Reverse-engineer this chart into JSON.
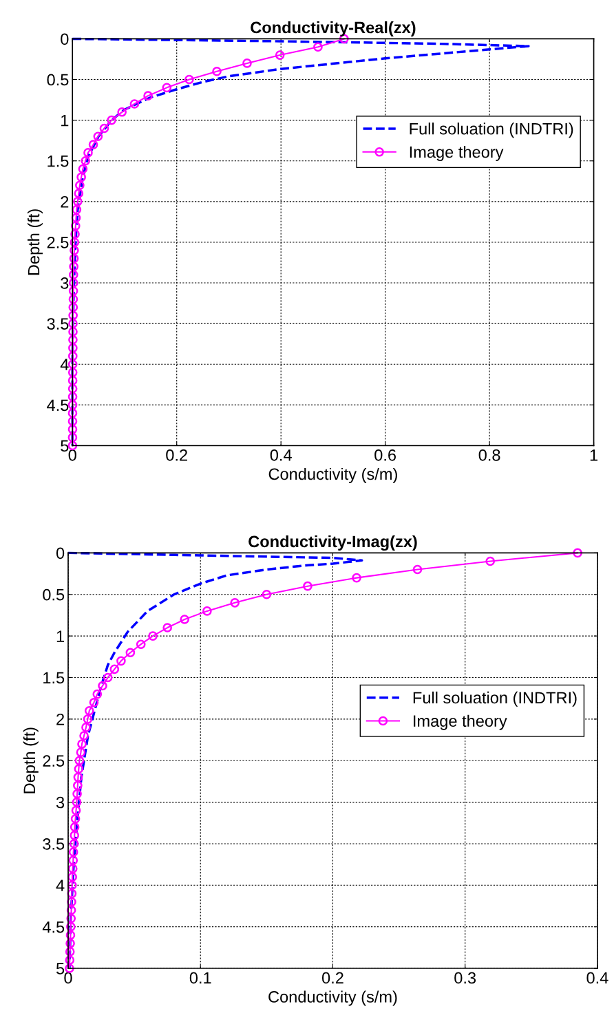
{
  "chart_data": [
    {
      "type": "line",
      "title": "Conductivity-Real(zx)",
      "xlabel": "Conductivity (s/m)",
      "ylabel": "Depth (ft)",
      "xlim": [
        0,
        1
      ],
      "xticks": [
        0,
        0.2,
        0.4,
        0.6,
        0.8,
        1
      ],
      "ylim": [
        5,
        0
      ],
      "yticks": [
        0,
        0.5,
        1,
        1.5,
        2,
        2.5,
        3,
        3.5,
        4,
        4.5,
        5
      ],
      "grid": true,
      "legend": "top right",
      "series": [
        {
          "name": "Full soluation (INDTRI)",
          "color": "#0000ff",
          "line_style": "dashed",
          "marker": "none",
          "x": [
            0,
            0.4,
            0.7,
            0.875,
            0.8,
            0.6,
            0.4,
            0.3,
            0.25,
            0.2,
            0.15,
            0.1,
            0.075,
            0.05,
            0.03,
            0.02,
            0.01,
            0.005,
            0.002,
            0,
            0
          ],
          "values": [
            0,
            0.03,
            0.06,
            0.09,
            0.13,
            0.24,
            0.37,
            0.46,
            0.53,
            0.62,
            0.72,
            0.87,
            1.0,
            1.2,
            1.45,
            1.7,
            2.1,
            2.6,
            3.2,
            4,
            5
          ]
        },
        {
          "name": "Image theory",
          "color": "#ff00ff",
          "line_style": "solid",
          "marker": "circle",
          "x": [
            0.521,
            0.471,
            0.398,
            0.335,
            0.277,
            0.224,
            0.181,
            0.145,
            0.119,
            0.095,
            0.075,
            0.061,
            0.049,
            0.04,
            0.03,
            0.025,
            0.02,
            0.017,
            0.014,
            0.012,
            0.01,
            0.008,
            0.007,
            0.006,
            0.005,
            0.004,
            0.0035,
            0.003,
            0.0025,
            0.002,
            0.002,
            0.0018,
            0.0016,
            0.0014,
            0.0012,
            0.001,
            0.001,
            0.0009,
            0.0008,
            0.0007,
            0.0006,
            0.0006,
            0.0005,
            0.0005,
            0.0004,
            0.0004,
            0.0003,
            0.0003,
            0.0003,
            0.0002,
            0.0002
          ],
          "values": [
            0,
            0.1,
            0.2,
            0.3,
            0.4,
            0.5,
            0.6,
            0.7,
            0.8,
            0.9,
            1.0,
            1.1,
            1.2,
            1.3,
            1.4,
            1.5,
            1.6,
            1.7,
            1.8,
            1.9,
            2.0,
            2.1,
            2.2,
            2.3,
            2.4,
            2.5,
            2.6,
            2.7,
            2.8,
            2.9,
            3.0,
            3.1,
            3.2,
            3.3,
            3.4,
            3.5,
            3.6,
            3.7,
            3.8,
            3.9,
            4.0,
            4.1,
            4.2,
            4.3,
            4.4,
            4.5,
            4.6,
            4.7,
            4.8,
            4.9,
            5.0
          ]
        }
      ]
    },
    {
      "type": "line",
      "title": "Conductivity-Imag(zx)",
      "xlabel": "Conductivity (s/m)",
      "ylabel": "Depth (ft)",
      "xlim": [
        0,
        0.4
      ],
      "xticks": [
        0,
        0.1,
        0.2,
        0.3,
        0.4
      ],
      "ylim": [
        5,
        0
      ],
      "yticks": [
        0,
        0.5,
        1,
        1.5,
        2,
        2.5,
        3,
        3.5,
        4,
        4.5,
        5
      ],
      "grid": true,
      "legend": "right",
      "series": [
        {
          "name": "Full soluation (INDTRI)",
          "color": "#0000ff",
          "line_style": "dashed",
          "marker": "none",
          "x": [
            0,
            0.1,
            0.2,
            0.222,
            0.2,
            0.18,
            0.15,
            0.12,
            0.1,
            0.08,
            0.06,
            0.045,
            0.035,
            0.03,
            0.025,
            0.02,
            0.015,
            0.01,
            0.007,
            0.004,
            0.002,
            0.001
          ],
          "values": [
            0,
            0.03,
            0.06,
            0.09,
            0.13,
            0.15,
            0.2,
            0.27,
            0.37,
            0.5,
            0.7,
            0.95,
            1.2,
            1.35,
            1.6,
            1.9,
            2.2,
            2.7,
            3.2,
            3.8,
            4.4,
            5
          ]
        },
        {
          "name": "Image theory",
          "color": "#ff00ff",
          "line_style": "solid",
          "marker": "circle",
          "x": [
            0.385,
            0.319,
            0.264,
            0.218,
            0.181,
            0.15,
            0.126,
            0.105,
            0.088,
            0.075,
            0.064,
            0.055,
            0.047,
            0.04,
            0.035,
            0.03,
            0.026,
            0.022,
            0.0195,
            0.016,
            0.0148,
            0.0135,
            0.012,
            0.0104,
            0.0096,
            0.0085,
            0.008,
            0.0075,
            0.0072,
            0.0068,
            0.0065,
            0.006,
            0.0055,
            0.005,
            0.0048,
            0.0045,
            0.004,
            0.0038,
            0.0035,
            0.0032,
            0.003,
            0.0028,
            0.0026,
            0.0024,
            0.0022,
            0.002,
            0.0018,
            0.0016,
            0.0014,
            0.0012,
            0.001
          ],
          "values": [
            0,
            0.1,
            0.2,
            0.3,
            0.4,
            0.5,
            0.6,
            0.7,
            0.8,
            0.9,
            1.0,
            1.1,
            1.2,
            1.3,
            1.4,
            1.5,
            1.6,
            1.7,
            1.8,
            1.9,
            2.0,
            2.1,
            2.2,
            2.3,
            2.4,
            2.5,
            2.6,
            2.7,
            2.8,
            2.9,
            3.0,
            3.1,
            3.2,
            3.3,
            3.4,
            3.5,
            3.6,
            3.7,
            3.8,
            3.9,
            4.0,
            4.1,
            4.2,
            4.3,
            4.4,
            4.5,
            4.6,
            4.7,
            4.8,
            4.9,
            5.0
          ]
        }
      ]
    }
  ]
}
